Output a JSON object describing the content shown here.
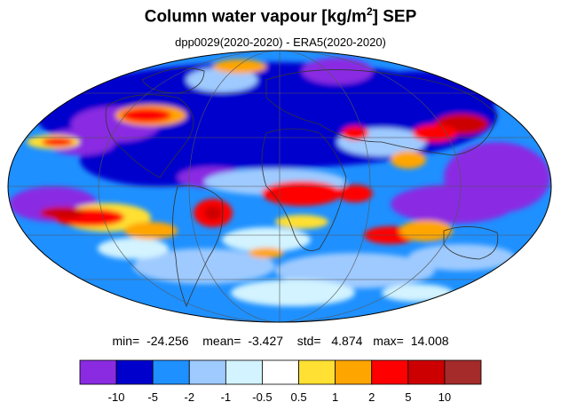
{
  "title_text": "Column water vapour [kg/m",
  "title_sup": "2",
  "title_suffix": "] SEP",
  "subtitle": "dpp0029(2020-2020) - ERA5(2020-2020)",
  "stats": {
    "min_label": "min=",
    "min": "-24.256",
    "mean_label": "mean=",
    "mean": "-3.427",
    "std_label": "std=",
    "std": "4.874",
    "max_label": "max=",
    "max": "14.008"
  },
  "colorbar": {
    "colors": [
      "#8a2be2",
      "#0000cd",
      "#1e90ff",
      "#9ecaff",
      "#d2f3ff",
      "#ffffff",
      "#ffe033",
      "#ffa500",
      "#ff0000",
      "#cc0000",
      "#a52a2a"
    ],
    "labels": [
      "-10",
      "-5",
      "-2",
      "-1",
      "-0.5",
      "0.5",
      "1",
      "2",
      "5",
      "10"
    ]
  },
  "colors": {
    "ocean_base": "#1e90ff",
    "land_outline": "#333333",
    "grid": "#555555"
  }
}
